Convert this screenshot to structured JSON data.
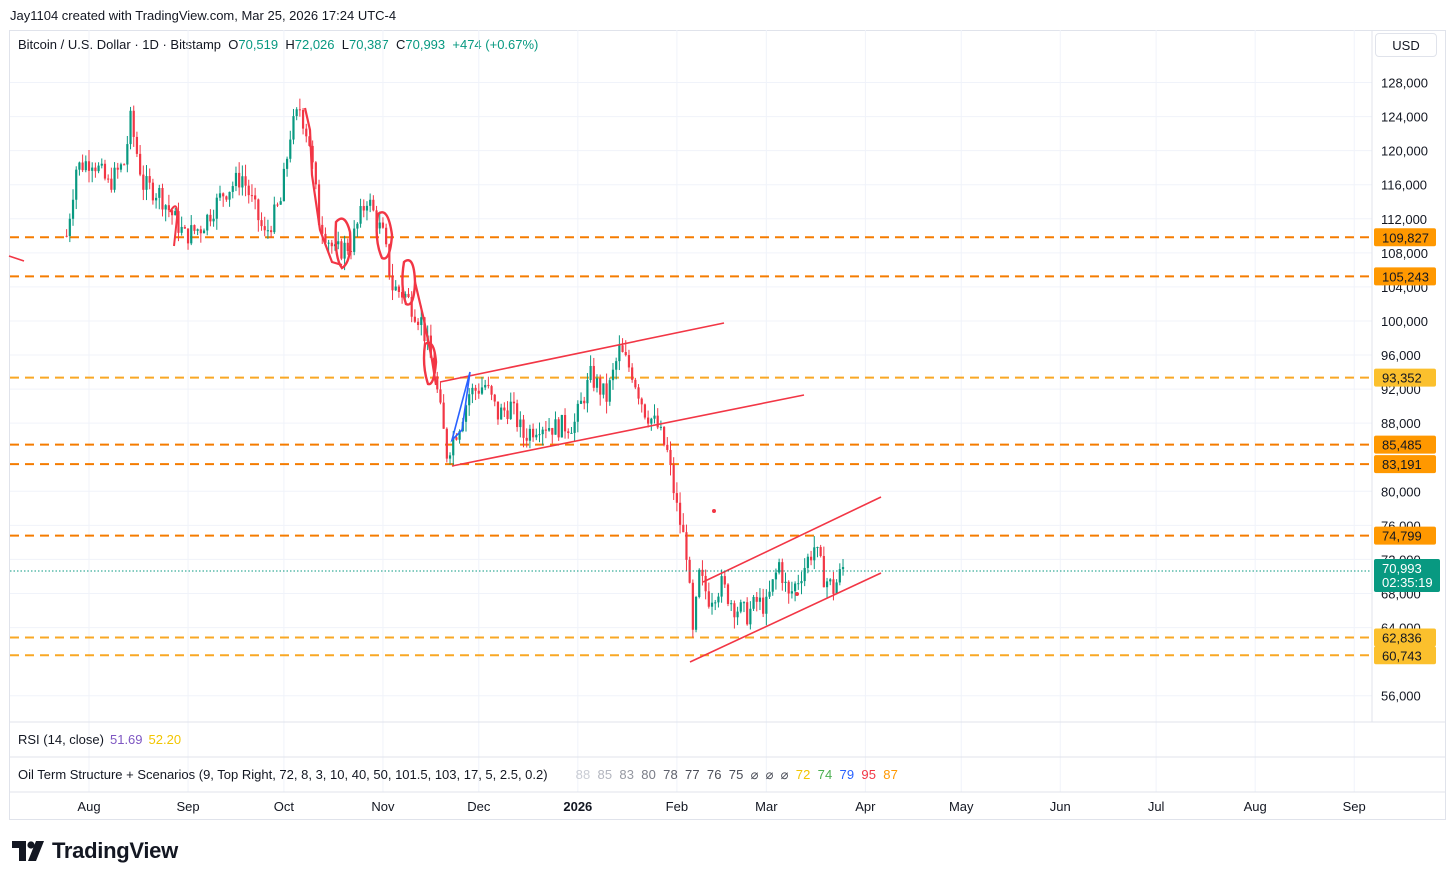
{
  "credit": "Jay1104 created with TradingView.com, Mar 25, 2026 17:24 UTC-4",
  "legend": {
    "symbol": "Bitcoin / U.S. Dollar · 1D · Bitstamp",
    "o_label": "O",
    "o": "70,519",
    "h_label": "H",
    "h": "72,026",
    "l_label": "L",
    "l": "70,387",
    "c_label": "C",
    "c": "70,993",
    "change": "+474 (+0.67%)"
  },
  "currency": "USD",
  "rsi": {
    "label": "RSI (14, close)",
    "v1": "51.69",
    "v2": "52.20"
  },
  "oil": {
    "label": "Oil Term Structure + Scenarios (9, Top Right, 72, 8, 3, 10, 40, 50, 101.5, 103, 17, 5, 2.5, 0.2)",
    "values": [
      {
        "t": "88",
        "c": "#c9ccd4"
      },
      {
        "t": "85",
        "c": "#b2b5be"
      },
      {
        "t": "83",
        "c": "#9598a1"
      },
      {
        "t": "80",
        "c": "#787b86"
      },
      {
        "t": "78",
        "c": "#5d606b"
      },
      {
        "t": "77",
        "c": "#4a4d57"
      },
      {
        "t": "76",
        "c": "#4a4d57"
      },
      {
        "t": "75",
        "c": "#4a4d57"
      },
      {
        "t": "⌀",
        "c": "#4a4d57"
      },
      {
        "t": "⌀",
        "c": "#4a4d57"
      },
      {
        "t": "⌀",
        "c": "#4a4d57"
      },
      {
        "t": "72",
        "c": "#f2c500"
      },
      {
        "t": "74",
        "c": "#4caf50"
      },
      {
        "t": "79",
        "c": "#2962ff"
      },
      {
        "t": "95",
        "c": "#f23645"
      },
      {
        "t": "87",
        "c": "#ff9800"
      }
    ]
  },
  "brand": "TradingView",
  "chart_data": {
    "type": "candlestick",
    "title": "Bitcoin / U.S. Dollar · 1D · Bitstamp",
    "y_ticks": [
      "128,000",
      "124,000",
      "120,000",
      "116,000",
      "112,000",
      "108,000",
      "104,000",
      "100,000",
      "96,000",
      "92,000",
      "88,000",
      "80,000",
      "76,000",
      "72,000",
      "68,000",
      "64,000",
      "56,000"
    ],
    "x_ticks": [
      "Aug",
      "Sep",
      "Oct",
      "Nov",
      "Dec",
      "2026",
      "Feb",
      "Mar",
      "Apr",
      "May",
      "Jun",
      "Jul",
      "Aug",
      "Sep"
    ],
    "ylim": [
      54000,
      131000
    ],
    "levels": [
      {
        "value": 109827,
        "label": "109,827",
        "color": "#f57c00",
        "bg": "#ff9800"
      },
      {
        "value": 105243,
        "label": "105,243",
        "color": "#f57c00",
        "bg": "#ff9800"
      },
      {
        "value": 93352,
        "label": "93,352",
        "color": "#f9a825",
        "bg": "#fbc02d"
      },
      {
        "value": 85485,
        "label": "85,485",
        "color": "#f57c00",
        "bg": "#ff9800"
      },
      {
        "value": 83191,
        "label": "83,191",
        "color": "#f57c00",
        "bg": "#ff9800"
      },
      {
        "value": 74799,
        "label": "74,799",
        "color": "#f57c00",
        "bg": "#ff9800"
      },
      {
        "value": 62836,
        "label": "62,836",
        "color": "#f9a825",
        "bg": "#fbc02d"
      },
      {
        "value": 60743,
        "label": "60,743",
        "color": "#f9a825",
        "bg": "#fbc02d"
      }
    ],
    "last_price": {
      "value": 70993,
      "label": "70,993",
      "countdown": "02:35:19",
      "color": "#089981"
    },
    "series": [
      {
        "name": "Close",
        "points": [
          [
            "2025-07-25",
            110000
          ],
          [
            "2025-07-28",
            118000
          ],
          [
            "2025-08-02",
            119000
          ],
          [
            "2025-08-07",
            116000
          ],
          [
            "2025-08-12",
            118500
          ],
          [
            "2025-08-14",
            123500
          ],
          [
            "2025-08-18",
            116000
          ],
          [
            "2025-08-23",
            115000
          ],
          [
            "2025-08-31",
            110000
          ],
          [
            "2025-09-05",
            111000
          ],
          [
            "2025-09-12",
            115000
          ],
          [
            "2025-09-18",
            117000
          ],
          [
            "2025-09-25",
            110000
          ],
          [
            "2025-09-30",
            114000
          ],
          [
            "2025-10-03",
            122000
          ],
          [
            "2025-10-06",
            125000
          ],
          [
            "2025-10-09",
            121000
          ],
          [
            "2025-10-12",
            112000
          ],
          [
            "2025-10-17",
            108000
          ],
          [
            "2025-10-22",
            109000
          ],
          [
            "2025-10-27",
            114500
          ],
          [
            "2025-11-01",
            110000
          ],
          [
            "2025-11-04",
            104000
          ],
          [
            "2025-11-08",
            103000
          ],
          [
            "2025-11-13",
            100000
          ],
          [
            "2025-11-17",
            94000
          ],
          [
            "2025-11-21",
            84500
          ],
          [
            "2025-11-25",
            88000
          ],
          [
            "2025-11-28",
            91500
          ],
          [
            "2025-12-03",
            92500
          ],
          [
            "2025-12-07",
            89000
          ],
          [
            "2025-12-11",
            90000
          ],
          [
            "2025-12-15",
            86500
          ],
          [
            "2025-12-20",
            88000
          ],
          [
            "2025-12-25",
            87500
          ],
          [
            "2025-12-31",
            88000
          ],
          [
            "2026-01-05",
            93500
          ],
          [
            "2026-01-10",
            91000
          ],
          [
            "2026-01-14",
            96500
          ],
          [
            "2026-01-18",
            94000
          ],
          [
            "2026-01-22",
            89500
          ],
          [
            "2026-01-26",
            87500
          ],
          [
            "2026-01-29",
            84500
          ],
          [
            "2026-02-01",
            78000
          ],
          [
            "2026-02-04",
            73000
          ],
          [
            "2026-02-06",
            63000
          ],
          [
            "2026-02-08",
            70000
          ],
          [
            "2026-02-11",
            67500
          ],
          [
            "2026-02-15",
            69000
          ],
          [
            "2026-02-19",
            66500
          ],
          [
            "2026-02-23",
            65500
          ],
          [
            "2026-02-26",
            67000
          ],
          [
            "2026-03-01",
            66500
          ],
          [
            "2026-03-05",
            71500
          ],
          [
            "2026-03-08",
            67500
          ],
          [
            "2026-03-12",
            70500
          ],
          [
            "2026-03-16",
            73500
          ],
          [
            "2026-03-19",
            70000
          ],
          [
            "2026-03-22",
            68500
          ],
          [
            "2026-03-25",
            70993
          ]
        ]
      }
    ]
  }
}
